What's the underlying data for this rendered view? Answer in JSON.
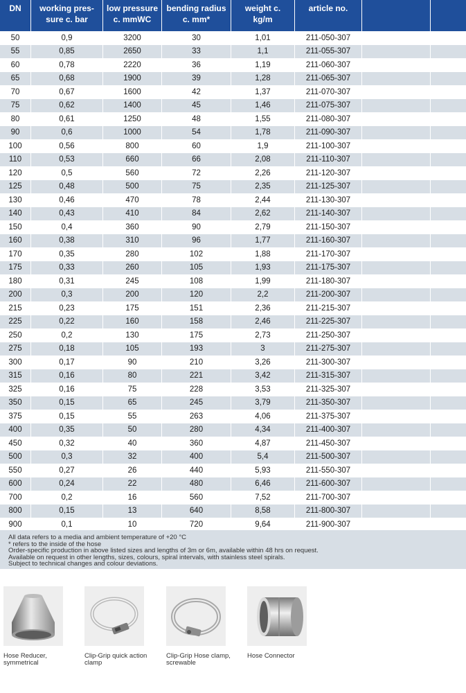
{
  "table": {
    "headers": [
      [
        "DN"
      ],
      [
        "working pres-",
        "sure c. bar"
      ],
      [
        "low pressure",
        "c. mmWC"
      ],
      [
        "bending radius",
        "c. mm*"
      ],
      [
        "weight c.",
        "kg/m"
      ],
      [
        "article no."
      ],
      [
        ""
      ],
      [
        ""
      ]
    ],
    "rows": [
      [
        "50",
        "0,9",
        "3200",
        "30",
        "1,01",
        "211-050-307"
      ],
      [
        "55",
        "0,85",
        "2650",
        "33",
        "1,1",
        "211-055-307"
      ],
      [
        "60",
        "0,78",
        "2220",
        "36",
        "1,19",
        "211-060-307"
      ],
      [
        "65",
        "0,68",
        "1900",
        "39",
        "1,28",
        "211-065-307"
      ],
      [
        "70",
        "0,67",
        "1600",
        "42",
        "1,37",
        "211-070-307"
      ],
      [
        "75",
        "0,62",
        "1400",
        "45",
        "1,46",
        "211-075-307"
      ],
      [
        "80",
        "0,61",
        "1250",
        "48",
        "1,55",
        "211-080-307"
      ],
      [
        "90",
        "0,6",
        "1000",
        "54",
        "1,78",
        "211-090-307"
      ],
      [
        "100",
        "0,56",
        "800",
        "60",
        "1,9",
        "211-100-307"
      ],
      [
        "110",
        "0,53",
        "660",
        "66",
        "2,08",
        "211-110-307"
      ],
      [
        "120",
        "0,5",
        "560",
        "72",
        "2,26",
        "211-120-307"
      ],
      [
        "125",
        "0,48",
        "500",
        "75",
        "2,35",
        "211-125-307"
      ],
      [
        "130",
        "0,46",
        "470",
        "78",
        "2,44",
        "211-130-307"
      ],
      [
        "140",
        "0,43",
        "410",
        "84",
        "2,62",
        "211-140-307"
      ],
      [
        "150",
        "0,4",
        "360",
        "90",
        "2,79",
        "211-150-307"
      ],
      [
        "160",
        "0,38",
        "310",
        "96",
        "1,77",
        "211-160-307"
      ],
      [
        "170",
        "0,35",
        "280",
        "102",
        "1,88",
        "211-170-307"
      ],
      [
        "175",
        "0,33",
        "260",
        "105",
        "1,93",
        "211-175-307"
      ],
      [
        "180",
        "0,31",
        "245",
        "108",
        "1,99",
        "211-180-307"
      ],
      [
        "200",
        "0,3",
        "200",
        "120",
        "2,2",
        "211-200-307"
      ],
      [
        "215",
        "0,23",
        "175",
        "151",
        "2,36",
        "211-215-307"
      ],
      [
        "225",
        "0,22",
        "160",
        "158",
        "2,46",
        "211-225-307"
      ],
      [
        "250",
        "0,2",
        "130",
        "175",
        "2,73",
        "211-250-307"
      ],
      [
        "275",
        "0,18",
        "105",
        "193",
        "3",
        "211-275-307"
      ],
      [
        "300",
        "0,17",
        "90",
        "210",
        "3,26",
        "211-300-307"
      ],
      [
        "315",
        "0,16",
        "80",
        "221",
        "3,42",
        "211-315-307"
      ],
      [
        "325",
        "0,16",
        "75",
        "228",
        "3,53",
        "211-325-307"
      ],
      [
        "350",
        "0,15",
        "65",
        "245",
        "3,79",
        "211-350-307"
      ],
      [
        "375",
        "0,15",
        "55",
        "263",
        "4,06",
        "211-375-307"
      ],
      [
        "400",
        "0,35",
        "50",
        "280",
        "4,34",
        "211-400-307"
      ],
      [
        "450",
        "0,32",
        "40",
        "360",
        "4,87",
        "211-450-307"
      ],
      [
        "500",
        "0,3",
        "32",
        "400",
        "5,4",
        "211-500-307"
      ],
      [
        "550",
        "0,27",
        "26",
        "440",
        "5,93",
        "211-550-307"
      ],
      [
        "600",
        "0,24",
        "22",
        "480",
        "6,46",
        "211-600-307"
      ],
      [
        "700",
        "0,2",
        "16",
        "560",
        "7,52",
        "211-700-307"
      ],
      [
        "800",
        "0,15",
        "13",
        "640",
        "8,58",
        "211-800-307"
      ],
      [
        "900",
        "0,1",
        "10",
        "720",
        "9,64",
        "211-900-307"
      ]
    ]
  },
  "notes": [
    "All data refers to a media and ambient temperature of +20 °C",
    "* refers to the inside of the hose",
    "Order-specific production in above listed sizes and lengths of 3m or 6m, available within 48 hrs on request.",
    "Available on request in other lengths, sizes, colours, spiral intervals, with stainless steel spirals.",
    "Subject to technical changes and colour deviations."
  ],
  "accessories": [
    {
      "caption_line1": "Hose Reducer,",
      "caption_line2": "symmetrical",
      "icon": "hose-reducer-image"
    },
    {
      "caption_line1": "Clip-Grip quick action",
      "caption_line2": "clamp",
      "icon": "clip-grip-clamp-image"
    },
    {
      "caption_line1": "Clip-Grip Hose clamp,",
      "caption_line2": "screwable",
      "icon": "hose-clamp-image"
    },
    {
      "caption_line1": "Hose Connector",
      "caption_line2": "",
      "icon": "hose-connector-image"
    }
  ],
  "colors": {
    "header_bg": "#1f4f9b",
    "stripe": "#d7dee5"
  }
}
